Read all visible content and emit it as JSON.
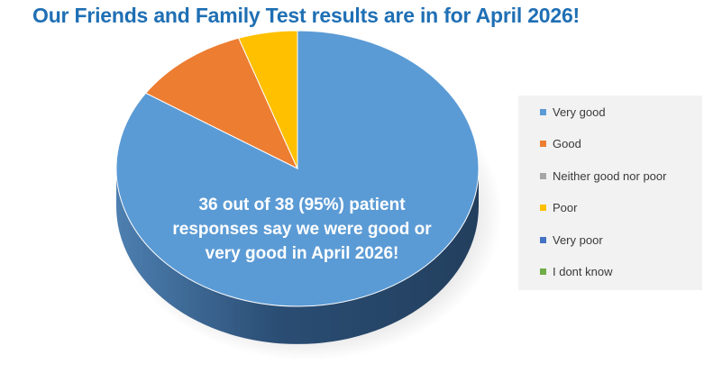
{
  "chart_data": {
    "type": "pie",
    "title": "Our Friends and Family Test results are in for April 2026!",
    "categories": [
      "Very good",
      "Good",
      "Neither good nor poor",
      "Poor",
      "Very poor",
      "I dont know"
    ],
    "values": [
      32,
      4,
      0,
      2,
      0,
      0
    ],
    "colors": [
      "#5b9bd5",
      "#ed7d31",
      "#a5a5a5",
      "#ffc000",
      "#4472c4",
      "#70ad47"
    ],
    "legend": "right",
    "style": "3d"
  },
  "annotation": {
    "lines": [
      "36 out of 38 (95%) patient",
      "responses say we were good or",
      "very good in April 2026!"
    ]
  }
}
